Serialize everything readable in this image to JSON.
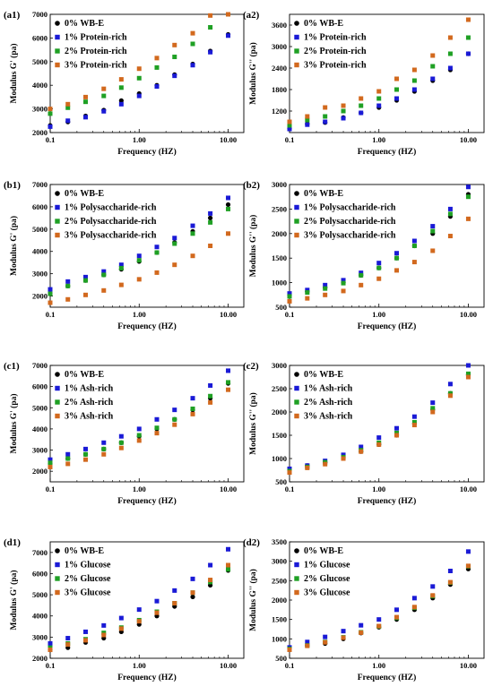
{
  "colors": {
    "s0": "#000000",
    "s1": "#1a1ad6",
    "s2": "#1fa024",
    "s3": "#d2691e"
  },
  "chart_data": [
    {
      "id": "a1",
      "panel_label": "(a1)",
      "type": "scatter",
      "xlabel": "Frequency (HZ)",
      "ylabel": "Modulus G' (pa)",
      "xscale": "log",
      "xlim": [
        0.1,
        15
      ],
      "xticks": [
        "0.1",
        "1.00",
        "10.00"
      ],
      "ylim": [
        2000,
        7000
      ],
      "yticks": [
        2000,
        3000,
        4000,
        5000,
        6000,
        7000
      ],
      "legend": "top-left",
      "x": [
        0.1,
        0.158,
        0.25,
        0.4,
        0.63,
        1.0,
        1.58,
        2.5,
        4.0,
        6.3,
        10.0
      ],
      "series": [
        {
          "name": "0% WB-E",
          "color": "s0",
          "values": [
            2300,
            2450,
            2700,
            2950,
            3350,
            3650,
            4000,
            4450,
            4900,
            5450,
            6150
          ]
        },
        {
          "name": "1% Protein-rich",
          "color": "s1",
          "values": [
            2250,
            2500,
            2650,
            2900,
            3200,
            3550,
            3950,
            4400,
            4850,
            5400,
            6100
          ]
        },
        {
          "name": "2% Protein-rich",
          "color": "s2",
          "values": [
            2800,
            3050,
            3300,
            3550,
            3900,
            4300,
            4750,
            5200,
            5750,
            6450,
            7000
          ]
        },
        {
          "name": "3% Protein-rich",
          "color": "s3",
          "values": [
            3000,
            3200,
            3500,
            3850,
            4250,
            4700,
            5150,
            5700,
            6200,
            6950,
            7000
          ]
        }
      ]
    },
    {
      "id": "a2",
      "panel_label": "(a2)",
      "type": "scatter",
      "xlabel": "Frequency (HZ)",
      "ylabel": "Modulus G'' (pa)",
      "xscale": "log",
      "xlim": [
        0.1,
        15
      ],
      "xticks": [
        "0.1",
        "1.00",
        "10.00"
      ],
      "ylim": [
        600,
        3900
      ],
      "yticks": [
        1200,
        1800,
        2400,
        3000,
        3600
      ],
      "legend": "top-left",
      "x": [
        0.1,
        0.158,
        0.25,
        0.4,
        0.63,
        1.0,
        1.58,
        2.5,
        4.0,
        6.3,
        10.0
      ],
      "series": [
        {
          "name": "0% WB-E",
          "color": "s0",
          "values": [
            720,
            840,
            880,
            1020,
            1150,
            1300,
            1500,
            1750,
            2050,
            2350,
            2800
          ]
        },
        {
          "name": "1% Protein-rich",
          "color": "s1",
          "values": [
            700,
            820,
            900,
            1000,
            1150,
            1350,
            1550,
            1800,
            2100,
            2400,
            2800
          ]
        },
        {
          "name": "2% Protein-rich",
          "color": "s2",
          "values": [
            800,
            950,
            1050,
            1200,
            1350,
            1550,
            1800,
            2050,
            2450,
            2800,
            3250
          ]
        },
        {
          "name": "3% Protein-rich",
          "color": "s3",
          "values": [
            900,
            1050,
            1300,
            1350,
            1550,
            1750,
            2100,
            2350,
            2750,
            3250,
            3750
          ]
        }
      ]
    },
    {
      "id": "b1",
      "panel_label": "(b1)",
      "type": "scatter",
      "xlabel": "Frequency (HZ)",
      "ylabel": "Modulus G' (pa)",
      "xscale": "log",
      "xlim": [
        0.1,
        15
      ],
      "xticks": [
        "0.1",
        "1.00",
        "10.00"
      ],
      "ylim": [
        1500,
        7000
      ],
      "yticks": [
        2000,
        3000,
        4000,
        5000,
        6000,
        7000
      ],
      "legend": "top-left",
      "x": [
        0.1,
        0.158,
        0.25,
        0.4,
        0.63,
        1.0,
        1.58,
        2.5,
        4.0,
        6.3,
        10.0
      ],
      "series": [
        {
          "name": "0% WB-E",
          "color": "s0",
          "values": [
            2100,
            2450,
            2700,
            2950,
            3200,
            3550,
            3950,
            4400,
            4900,
            5500,
            6100
          ]
        },
        {
          "name": "1% Polysaccharide-rich",
          "color": "s1",
          "values": [
            2300,
            2650,
            2850,
            3100,
            3400,
            3800,
            4200,
            4600,
            5150,
            5700,
            6400
          ]
        },
        {
          "name": "2% Polysaccharide-rich",
          "color": "s2",
          "values": [
            2100,
            2450,
            2700,
            2950,
            3250,
            3600,
            3950,
            4350,
            4800,
            5300,
            5900
          ]
        },
        {
          "name": "3% Polysaccharide-rich",
          "color": "s3",
          "values": [
            1700,
            1850,
            2050,
            2250,
            2500,
            2750,
            3050,
            3400,
            3800,
            4250,
            4800
          ]
        }
      ]
    },
    {
      "id": "b2",
      "panel_label": "(b2)",
      "type": "scatter",
      "xlabel": "Frequency (HZ)",
      "ylabel": "Modulus G'' (pa)",
      "xscale": "log",
      "xlim": [
        0.1,
        15
      ],
      "xticks": [
        "0.1",
        "1.00",
        "10.00"
      ],
      "ylim": [
        500,
        3000
      ],
      "yticks": [
        500,
        1000,
        1500,
        2000,
        2500,
        3000
      ],
      "legend": "top-left",
      "x": [
        0.1,
        0.158,
        0.25,
        0.4,
        0.63,
        1.0,
        1.58,
        2.5,
        4.0,
        6.3,
        10.0
      ],
      "series": [
        {
          "name": "0% WB-E",
          "color": "s0",
          "values": [
            750,
            820,
            900,
            1000,
            1150,
            1300,
            1500,
            1750,
            2000,
            2350,
            2800
          ]
        },
        {
          "name": "1% Polysaccharide-rich",
          "color": "s1",
          "values": [
            780,
            850,
            950,
            1050,
            1200,
            1400,
            1600,
            1850,
            2150,
            2500,
            2950
          ]
        },
        {
          "name": "2% Polysaccharide-rich",
          "color": "s2",
          "values": [
            720,
            800,
            880,
            990,
            1150,
            1300,
            1500,
            1750,
            2050,
            2400,
            2750
          ]
        },
        {
          "name": "3% Polysaccharide-rich",
          "color": "s3",
          "values": [
            620,
            680,
            750,
            830,
            950,
            1080,
            1250,
            1420,
            1650,
            1950,
            2300
          ]
        }
      ]
    },
    {
      "id": "c1",
      "panel_label": "(c1)",
      "type": "scatter",
      "xlabel": "Frequency (HZ)",
      "ylabel": "Modulus G' (pa)",
      "xscale": "log",
      "xlim": [
        0.1,
        15
      ],
      "xticks": [
        "0.1",
        "1.00",
        "10.00"
      ],
      "ylim": [
        1500,
        7000
      ],
      "yticks": [
        2000,
        3000,
        4000,
        5000,
        6000,
        7000
      ],
      "legend": "top-left",
      "x": [
        0.1,
        0.158,
        0.25,
        0.4,
        0.63,
        1.0,
        1.58,
        2.5,
        4.0,
        6.3,
        10.0
      ],
      "series": [
        {
          "name": "0% WB-E",
          "color": "s0",
          "values": [
            2350,
            2600,
            2800,
            3050,
            3350,
            3650,
            4000,
            4450,
            4900,
            5450,
            6150
          ]
        },
        {
          "name": "1% Ash-rich",
          "color": "s1",
          "values": [
            2550,
            2800,
            3050,
            3350,
            3650,
            4000,
            4450,
            4900,
            5450,
            6050,
            6750
          ]
        },
        {
          "name": "2% Ash-rich",
          "color": "s2",
          "values": [
            2400,
            2600,
            2800,
            3050,
            3350,
            3700,
            4050,
            4450,
            4950,
            5550,
            6200
          ]
        },
        {
          "name": "3% Ash-rich",
          "color": "s3",
          "values": [
            2200,
            2350,
            2550,
            2800,
            3100,
            3450,
            3800,
            4200,
            4700,
            5250,
            5850
          ]
        }
      ]
    },
    {
      "id": "c2",
      "panel_label": "(c2)",
      "type": "scatter",
      "xlabel": "Frequency (HZ)",
      "ylabel": "Modulus G'' (pa)",
      "xscale": "log",
      "xlim": [
        0.1,
        15
      ],
      "xticks": [
        "0.1",
        "1.00",
        "10.00"
      ],
      "ylim": [
        500,
        3000
      ],
      "yticks": [
        500,
        1000,
        1500,
        2000,
        2500,
        3000
      ],
      "legend": "top-left",
      "x": [
        0.1,
        0.158,
        0.25,
        0.4,
        0.63,
        1.0,
        1.58,
        2.5,
        4.0,
        6.3,
        10.0
      ],
      "series": [
        {
          "name": "0% WB-E",
          "color": "s0",
          "values": [
            750,
            850,
            920,
            1020,
            1150,
            1300,
            1500,
            1750,
            2050,
            2400,
            2800
          ]
        },
        {
          "name": "1% Ash-rich",
          "color": "s1",
          "values": [
            780,
            850,
            950,
            1080,
            1250,
            1450,
            1650,
            1900,
            2200,
            2600,
            3050
          ]
        },
        {
          "name": "2% Ash-rich",
          "color": "s2",
          "values": [
            730,
            820,
            920,
            1030,
            1180,
            1340,
            1550,
            1780,
            2080,
            2400,
            2820
          ]
        },
        {
          "name": "3% Ash-rich",
          "color": "s3",
          "values": [
            700,
            800,
            880,
            1000,
            1150,
            1300,
            1500,
            1720,
            2000,
            2350,
            2750
          ]
        }
      ]
    },
    {
      "id": "d1",
      "panel_label": "(d1)",
      "type": "scatter",
      "xlabel": "Frequency (HZ)",
      "ylabel": "Modulus G' (pa)",
      "xscale": "log",
      "xlim": [
        0.1,
        15
      ],
      "xticks": [
        "0.1",
        "1.00",
        "10.00"
      ],
      "ylim": [
        2000,
        7500
      ],
      "yticks": [
        2000,
        3000,
        4000,
        5000,
        6000,
        7000
      ],
      "legend": "top-left",
      "x": [
        0.1,
        0.158,
        0.25,
        0.4,
        0.63,
        1.0,
        1.58,
        2.5,
        4.0,
        6.3,
        10.0
      ],
      "series": [
        {
          "name": "0% WB-E",
          "color": "s0",
          "values": [
            2400,
            2500,
            2750,
            2950,
            3250,
            3600,
            4000,
            4450,
            4900,
            5450,
            6150
          ]
        },
        {
          "name": "1% Glucose",
          "color": "s1",
          "values": [
            2700,
            2950,
            3250,
            3550,
            3900,
            4300,
            4700,
            5200,
            5750,
            6400,
            7150
          ]
        },
        {
          "name": "2% Glucose",
          "color": "s2",
          "values": [
            2500,
            2700,
            2900,
            3200,
            3450,
            3800,
            4200,
            4600,
            5100,
            5600,
            6200
          ]
        },
        {
          "name": "3% Glucose",
          "color": "s3",
          "values": [
            2400,
            2650,
            2850,
            3100,
            3400,
            3750,
            4150,
            4600,
            5100,
            5700,
            6400
          ]
        }
      ]
    },
    {
      "id": "d2",
      "panel_label": "(d2)",
      "type": "scatter",
      "xlabel": "Frequency (HZ)",
      "ylabel": "Modulus G'' (pa)",
      "xscale": "log",
      "xlim": [
        0.1,
        15
      ],
      "xticks": [
        "0.1",
        "1.00",
        "10.00"
      ],
      "ylim": [
        500,
        3500
      ],
      "yticks": [
        500,
        1000,
        1500,
        2000,
        2500,
        3000,
        3500
      ],
      "legend": "top-left",
      "x": [
        0.1,
        0.158,
        0.25,
        0.4,
        0.63,
        1.0,
        1.58,
        2.5,
        4.0,
        6.3,
        10.0
      ],
      "series": [
        {
          "name": "0% WB-E",
          "color": "s0",
          "values": [
            760,
            830,
            880,
            1000,
            1150,
            1300,
            1500,
            1750,
            2050,
            2400,
            2800
          ]
        },
        {
          "name": "1% Glucose",
          "color": "s1",
          "values": [
            780,
            920,
            1050,
            1200,
            1350,
            1500,
            1750,
            2050,
            2350,
            2750,
            3250
          ]
        },
        {
          "name": "2% Glucose",
          "color": "s2",
          "values": [
            740,
            830,
            920,
            1040,
            1170,
            1320,
            1540,
            1800,
            2100,
            2450,
            2870
          ]
        },
        {
          "name": "3% Glucose",
          "color": "s3",
          "values": [
            720,
            820,
            910,
            1030,
            1160,
            1330,
            1560,
            1820,
            2120,
            2460,
            2880
          ]
        }
      ]
    }
  ]
}
